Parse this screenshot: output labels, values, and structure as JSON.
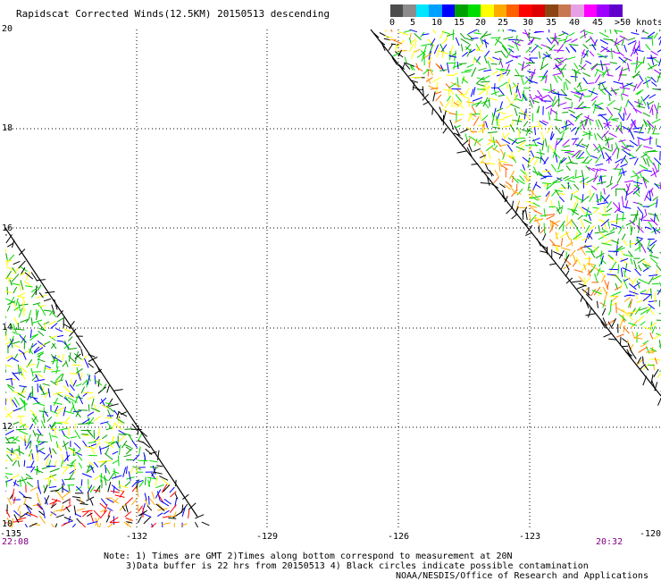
{
  "header": {
    "title": "Rapidscat Corrected Winds(12.5KM) 20150513 descending"
  },
  "colorbar": {
    "colors": [
      "#4d4d4d",
      "#8c8c8c",
      "#00e6ff",
      "#00a0ff",
      "#0000ff",
      "#00a000",
      "#00dd00",
      "#ffff00",
      "#ffaa00",
      "#ff6000",
      "#ff0000",
      "#dd0000",
      "#8b4513",
      "#c87850",
      "#e6a0e6",
      "#ff00ff",
      "#a000ff",
      "#6000cc"
    ],
    "labels": [
      "0",
      "5",
      "10",
      "15",
      "20",
      "25",
      "30",
      "35",
      "40",
      "45",
      ">50 knots"
    ]
  },
  "map": {
    "lat_labels": [
      "20",
      "18",
      "16",
      "14",
      "12",
      "10"
    ],
    "lon_labels": [
      "-132",
      "-129",
      "-126",
      "-123"
    ],
    "lon_left": "-135",
    "lon_right": "-120",
    "time_left": "22:08",
    "time_right": "20:32"
  },
  "notes": {
    "line1": "Note: 1) Times are GMT 2)Times along bottom correspond to measurement at 20N",
    "line2": "3)Data buffer is 22 hrs from 20150513 4) Black circles indicate possible contamination",
    "credit": "NOAA/NESDIS/Office of Research and Applications"
  }
}
